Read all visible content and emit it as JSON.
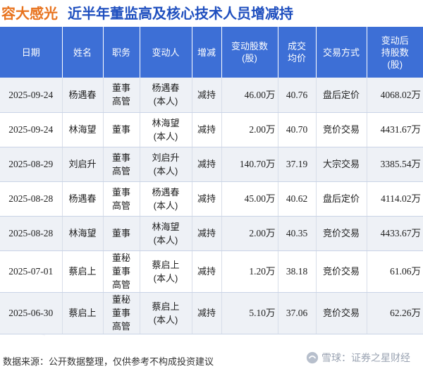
{
  "header": {
    "company": "容大感光",
    "title": "近半年董监高及核心技术人员增减持"
  },
  "table": {
    "columns": [
      "日期",
      "姓名",
      "职务",
      "变动人",
      "增减",
      "变动股数\n(股)",
      "成交\n均价",
      "交易方式",
      "变动后\n持股数\n(股)"
    ],
    "rows": [
      {
        "date": "2025-09-24",
        "name": "杨遇春",
        "role": "董事\n高管",
        "actor": "杨遇春\n(本人)",
        "direction": "减持",
        "shares": "46.00万",
        "price": "40.76",
        "method": "盘后定价",
        "after": "4068.02万"
      },
      {
        "date": "2025-09-24",
        "name": "林海望",
        "role": "董事",
        "actor": "林海望\n(本人)",
        "direction": "减持",
        "shares": "2.00万",
        "price": "40.70",
        "method": "竞价交易",
        "after": "4431.67万"
      },
      {
        "date": "2025-08-29",
        "name": "刘启升",
        "role": "董事\n高管",
        "actor": "刘启升\n(本人)",
        "direction": "减持",
        "shares": "140.70万",
        "price": "37.19",
        "method": "大宗交易",
        "after": "3385.54万"
      },
      {
        "date": "2025-08-28",
        "name": "杨遇春",
        "role": "董事\n高管",
        "actor": "杨遇春\n(本人)",
        "direction": "减持",
        "shares": "45.00万",
        "price": "40.62",
        "method": "盘后定价",
        "after": "4114.02万"
      },
      {
        "date": "2025-08-28",
        "name": "林海望",
        "role": "董事",
        "actor": "林海望\n(本人)",
        "direction": "减持",
        "shares": "2.00万",
        "price": "40.35",
        "method": "竞价交易",
        "after": "4433.67万"
      },
      {
        "date": "2025-07-01",
        "name": "蔡启上",
        "role": "董秘\n董事\n高管",
        "actor": "蔡启上\n(本人)",
        "direction": "减持",
        "shares": "1.20万",
        "price": "38.18",
        "method": "竞价交易",
        "after": "61.06万"
      },
      {
        "date": "2025-06-30",
        "name": "蔡启上",
        "role": "董秘\n董事\n高管",
        "actor": "蔡启上\n(本人)",
        "direction": "减持",
        "shares": "5.10万",
        "price": "37.06",
        "method": "竞价交易",
        "after": "62.26万"
      }
    ]
  },
  "footer": {
    "source": "数据来源：公开数据整理，仅供参考不构成投资建议",
    "watermark": "雪球：证券之星财经"
  },
  "colors": {
    "company": "#e8731e",
    "title": "#1f4fbf",
    "header_bg": "#3d6fd6",
    "reduce": "#1a9b2b"
  }
}
